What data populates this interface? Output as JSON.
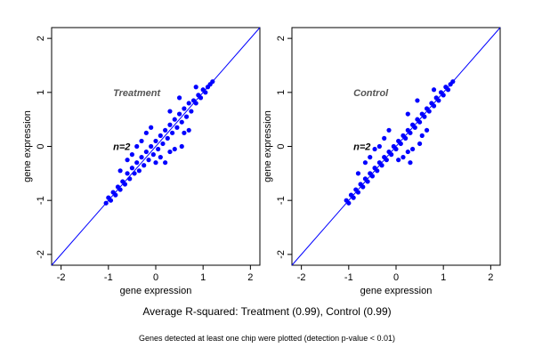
{
  "chart_data": [
    {
      "type": "scatter",
      "xlabel": "gene expression",
      "ylabel": "gene expression",
      "xlim": [
        -2.2,
        2.2
      ],
      "ylim": [
        -2.2,
        2.2
      ],
      "xticks": [
        "-2",
        "-1",
        "0",
        "1",
        "2"
      ],
      "yticks": [
        "-2",
        "-1",
        "0",
        "1",
        "2"
      ],
      "annotations": [
        {
          "text": "Treatment",
          "x": -0.9,
          "y": 1.0,
          "color": "#555555"
        },
        {
          "text": "n=2",
          "x": -0.9,
          "y": 0.0,
          "color": "#000000"
        }
      ],
      "reference_line": {
        "slope": 1,
        "intercept": 0,
        "color": "#0000ff"
      },
      "point_color": "#0000ff",
      "points": [
        [
          -1.05,
          -1.05
        ],
        [
          -1.0,
          -0.95
        ],
        [
          -0.95,
          -1.0
        ],
        [
          -0.9,
          -0.85
        ],
        [
          -0.85,
          -0.9
        ],
        [
          -0.8,
          -0.75
        ],
        [
          -0.75,
          -0.8
        ],
        [
          -0.7,
          -0.65
        ],
        [
          -0.65,
          -0.7
        ],
        [
          -0.6,
          -0.5
        ],
        [
          -0.55,
          -0.6
        ],
        [
          -0.5,
          -0.4
        ],
        [
          -0.45,
          -0.5
        ],
        [
          -0.4,
          -0.3
        ],
        [
          -0.35,
          -0.45
        ],
        [
          -0.3,
          -0.2
        ],
        [
          -0.25,
          -0.35
        ],
        [
          -0.2,
          -0.1
        ],
        [
          -0.15,
          -0.25
        ],
        [
          -0.1,
          0.0
        ],
        [
          -0.05,
          -0.15
        ],
        [
          0.0,
          0.1
        ],
        [
          0.05,
          -0.05
        ],
        [
          0.1,
          0.2
        ],
        [
          0.15,
          0.05
        ],
        [
          0.2,
          0.3
        ],
        [
          0.25,
          0.15
        ],
        [
          0.3,
          0.4
        ],
        [
          0.35,
          0.25
        ],
        [
          0.4,
          0.5
        ],
        [
          0.45,
          0.35
        ],
        [
          0.5,
          0.6
        ],
        [
          0.55,
          0.45
        ],
        [
          0.6,
          0.7
        ],
        [
          0.65,
          0.55
        ],
        [
          0.7,
          0.8
        ],
        [
          0.75,
          0.65
        ],
        [
          0.8,
          0.85
        ],
        [
          0.85,
          0.8
        ],
        [
          0.9,
          0.95
        ],
        [
          0.95,
          0.9
        ],
        [
          1.0,
          1.05
        ],
        [
          1.05,
          1.0
        ],
        [
          1.1,
          1.1
        ],
        [
          1.15,
          1.15
        ],
        [
          1.2,
          1.2
        ],
        [
          -0.3,
          0.1
        ],
        [
          -0.2,
          0.25
        ],
        [
          0.3,
          -0.1
        ],
        [
          0.4,
          -0.05
        ],
        [
          -0.5,
          -0.15
        ],
        [
          0.5,
          0.9
        ],
        [
          0.2,
          -0.3
        ],
        [
          0.55,
          0.0
        ],
        [
          -0.1,
          0.35
        ],
        [
          0.1,
          -0.2
        ],
        [
          0.7,
          0.3
        ],
        [
          -0.6,
          -0.25
        ],
        [
          0.0,
          -0.3
        ],
        [
          0.3,
          0.65
        ],
        [
          -0.4,
          0.0
        ],
        [
          0.85,
          1.1
        ],
        [
          0.6,
          0.25
        ],
        [
          -0.75,
          -0.45
        ]
      ]
    },
    {
      "type": "scatter",
      "xlabel": "gene expression",
      "ylabel": "gene expression",
      "xlim": [
        -2.2,
        2.2
      ],
      "ylim": [
        -2.2,
        2.2
      ],
      "xticks": [
        "-2",
        "-1",
        "0",
        "1",
        "2"
      ],
      "yticks": [
        "-2",
        "-1",
        "0",
        "1",
        "2"
      ],
      "annotations": [
        {
          "text": "Control",
          "x": -0.9,
          "y": 1.0,
          "color": "#555555"
        },
        {
          "text": "n=2",
          "x": -0.9,
          "y": 0.0,
          "color": "#000000"
        }
      ],
      "reference_line": {
        "slope": 1,
        "intercept": 0,
        "color": "#0000ff"
      },
      "point_color": "#0000ff",
      "points": [
        [
          -1.05,
          -1.0
        ],
        [
          -1.0,
          -1.05
        ],
        [
          -0.95,
          -0.9
        ],
        [
          -0.9,
          -0.95
        ],
        [
          -0.85,
          -0.8
        ],
        [
          -0.8,
          -0.85
        ],
        [
          -0.75,
          -0.7
        ],
        [
          -0.7,
          -0.75
        ],
        [
          -0.65,
          -0.6
        ],
        [
          -0.6,
          -0.65
        ],
        [
          -0.55,
          -0.5
        ],
        [
          -0.5,
          -0.55
        ],
        [
          -0.45,
          -0.4
        ],
        [
          -0.4,
          -0.45
        ],
        [
          -0.35,
          -0.3
        ],
        [
          -0.3,
          -0.35
        ],
        [
          -0.25,
          -0.2
        ],
        [
          -0.2,
          -0.25
        ],
        [
          -0.15,
          -0.1
        ],
        [
          -0.1,
          -0.15
        ],
        [
          -0.05,
          0.0
        ],
        [
          0.0,
          -0.05
        ],
        [
          0.05,
          0.1
        ],
        [
          0.1,
          0.05
        ],
        [
          0.15,
          0.2
        ],
        [
          0.2,
          0.15
        ],
        [
          0.25,
          0.3
        ],
        [
          0.3,
          0.25
        ],
        [
          0.35,
          0.4
        ],
        [
          0.4,
          0.35
        ],
        [
          0.45,
          0.5
        ],
        [
          0.5,
          0.45
        ],
        [
          0.55,
          0.6
        ],
        [
          0.6,
          0.55
        ],
        [
          0.65,
          0.7
        ],
        [
          0.7,
          0.65
        ],
        [
          0.75,
          0.8
        ],
        [
          0.8,
          0.75
        ],
        [
          0.85,
          0.9
        ],
        [
          0.9,
          0.85
        ],
        [
          0.95,
          1.0
        ],
        [
          1.0,
          0.95
        ],
        [
          1.05,
          1.1
        ],
        [
          1.1,
          1.05
        ],
        [
          1.15,
          1.15
        ],
        [
          1.2,
          1.2
        ],
        [
          -0.35,
          0.0
        ],
        [
          -0.25,
          0.15
        ],
        [
          0.25,
          -0.1
        ],
        [
          0.35,
          -0.05
        ],
        [
          -0.55,
          -0.2
        ],
        [
          0.45,
          0.85
        ],
        [
          0.3,
          -0.3
        ],
        [
          0.5,
          0.05
        ],
        [
          -0.15,
          0.3
        ],
        [
          0.15,
          -0.2
        ],
        [
          0.65,
          0.3
        ],
        [
          -0.65,
          -0.3
        ],
        [
          0.05,
          -0.25
        ],
        [
          0.25,
          0.6
        ],
        [
          -0.45,
          -0.05
        ],
        [
          0.8,
          1.05
        ],
        [
          0.55,
          0.2
        ],
        [
          -0.8,
          -0.5
        ]
      ]
    }
  ],
  "summary": "Average R-squared: Treatment (0.99), Control (0.99)",
  "footnote": "Genes detected at least one chip were plotted (detection p-value < 0.01)"
}
